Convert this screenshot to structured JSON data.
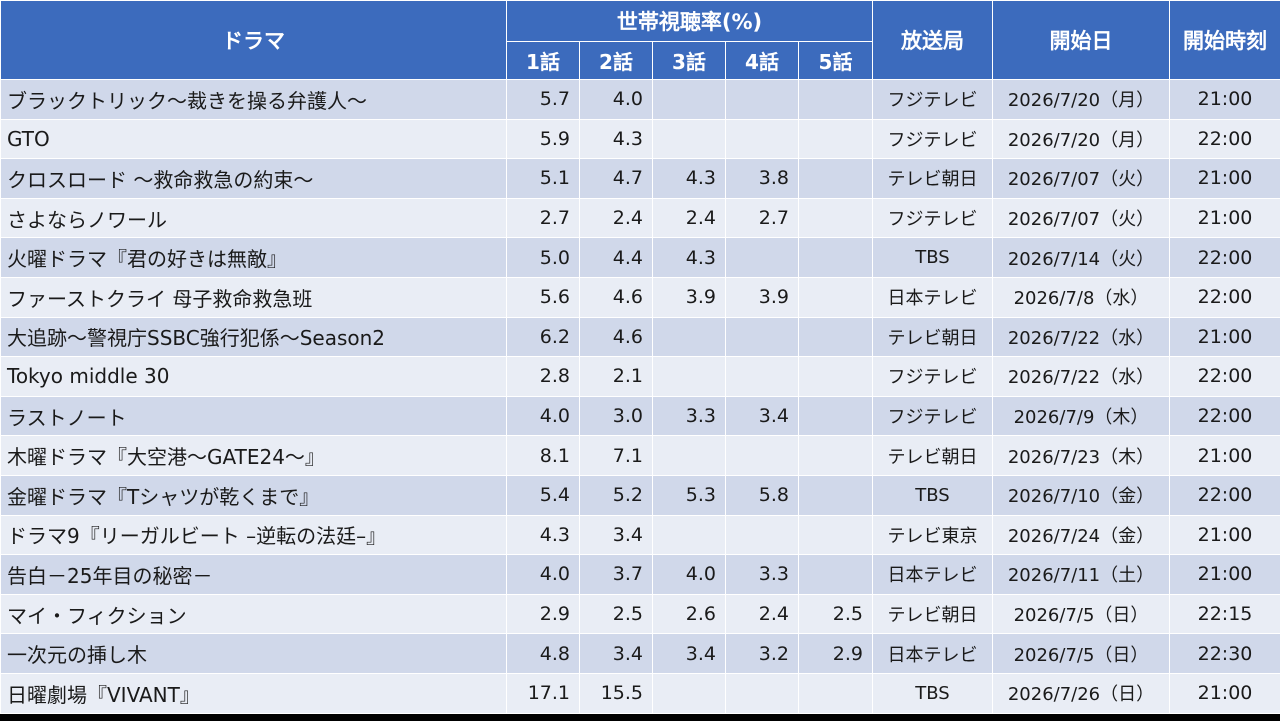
{
  "header": {
    "drama": "ドラマ",
    "rating_group": "世帯視聴率(%)",
    "episodes": [
      "1話",
      "2話",
      "3話",
      "4話",
      "5話"
    ],
    "station": "放送局",
    "start_date": "開始日",
    "start_time": "開始時刻"
  },
  "rows": [
    {
      "title": "ブラックトリック〜裁きを操る弁護人〜",
      "ratings": [
        "5.7",
        "4.0",
        "",
        "",
        ""
      ],
      "station": "フジテレビ",
      "date": "2026/7/20（月）",
      "time": "21:00"
    },
    {
      "title": "GTO",
      "ratings": [
        "5.9",
        "4.3",
        "",
        "",
        ""
      ],
      "station": "フジテレビ",
      "date": "2026/7/20（月）",
      "time": "22:00"
    },
    {
      "title": "クロスロード 〜救命救急の約束〜",
      "ratings": [
        "5.1",
        "4.7",
        "4.3",
        "3.8",
        ""
      ],
      "station": "テレビ朝日",
      "date": "2026/7/07（火）",
      "time": "21:00"
    },
    {
      "title": "さよならノワール",
      "ratings": [
        "2.7",
        "2.4",
        "2.4",
        "2.7",
        ""
      ],
      "station": "フジテレビ",
      "date": "2026/7/07（火）",
      "time": "21:00"
    },
    {
      "title": "火曜ドラマ『君の好きは無敵』",
      "ratings": [
        "5.0",
        "4.4",
        "4.3",
        "",
        ""
      ],
      "station": "TBS",
      "date": "2026/7/14（火）",
      "time": "22:00"
    },
    {
      "title": "ファーストクライ 母子救命救急班",
      "ratings": [
        "5.6",
        "4.6",
        "3.9",
        "3.9",
        ""
      ],
      "station": "日本テレビ",
      "date": "2026/7/8（水）",
      "time": "22:00"
    },
    {
      "title": "大追跡〜警視庁SSBC強行犯係〜Season2",
      "ratings": [
        "6.2",
        "4.6",
        "",
        "",
        ""
      ],
      "station": "テレビ朝日",
      "date": "2026/7/22（水）",
      "time": "21:00"
    },
    {
      "title": "Tokyo middle 30",
      "ratings": [
        "2.8",
        "2.1",
        "",
        "",
        ""
      ],
      "station": "フジテレビ",
      "date": "2026/7/22（水）",
      "time": "22:00"
    },
    {
      "title": "ラストノート",
      "ratings": [
        "4.0",
        "3.0",
        "3.3",
        "3.4",
        ""
      ],
      "station": "フジテレビ",
      "date": "2026/7/9（木）",
      "time": "22:00"
    },
    {
      "title": "木曜ドラマ『大空港〜GATE24〜』",
      "ratings": [
        "8.1",
        "7.1",
        "",
        "",
        ""
      ],
      "station": "テレビ朝日",
      "date": "2026/7/23（木）",
      "time": "21:00"
    },
    {
      "title": "金曜ドラマ『Tシャツが乾くまで』",
      "ratings": [
        "5.4",
        "5.2",
        "5.3",
        "5.8",
        ""
      ],
      "station": "TBS",
      "date": "2026/7/10（金）",
      "time": "22:00"
    },
    {
      "title": "ドラマ9『リーガルビート –逆転の法廷–』",
      "ratings": [
        "4.3",
        "3.4",
        "",
        "",
        ""
      ],
      "station": "テレビ東京",
      "date": "2026/7/24（金）",
      "time": "21:00"
    },
    {
      "title": "告白－25年目の秘密－",
      "ratings": [
        "4.0",
        "3.7",
        "4.0",
        "3.3",
        ""
      ],
      "station": "日本テレビ",
      "date": "2026/7/11（土）",
      "time": "21:00"
    },
    {
      "title": "マイ・フィクション",
      "ratings": [
        "2.9",
        "2.5",
        "2.6",
        "2.4",
        "2.5"
      ],
      "station": "テレビ朝日",
      "date": "2026/7/5（日）",
      "time": "22:15"
    },
    {
      "title": "一次元の挿し木",
      "ratings": [
        "4.8",
        "3.4",
        "3.4",
        "3.2",
        "2.9"
      ],
      "station": "日本テレビ",
      "date": "2026/7/5（日）",
      "time": "22:30"
    },
    {
      "title": "日曜劇場『VIVANT』",
      "ratings": [
        "17.1",
        "15.5",
        "",
        "",
        ""
      ],
      "station": "TBS",
      "date": "2026/7/26（日）",
      "time": "21:00"
    }
  ],
  "colors": {
    "header_bg": "#3c6bbd",
    "row_odd": "#d0d8ea",
    "row_even": "#e9edf5",
    "text": "#1a1a1a"
  }
}
